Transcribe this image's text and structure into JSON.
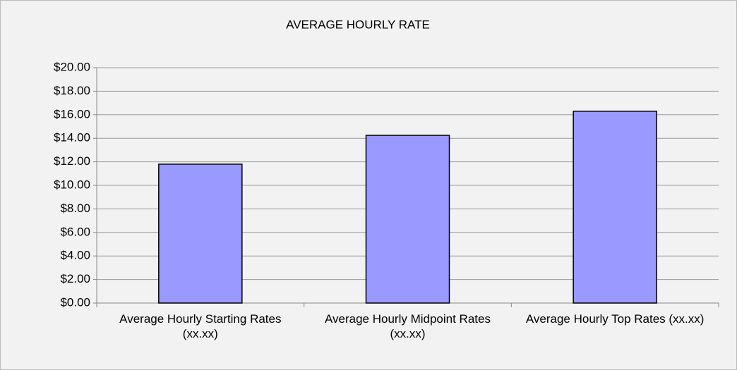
{
  "chart_data": {
    "type": "bar",
    "title": "AVERAGE HOURLY RATE",
    "categories": [
      "Average Hourly Starting Rates (xx.xx)",
      "Average Hourly Midpoint Rates (xx.xx)",
      "Average Hourly Top Rates (xx.xx)"
    ],
    "values": [
      11.8,
      14.25,
      16.3
    ],
    "color": "#9999ff",
    "ylim": [
      0,
      20
    ],
    "yticks": [
      {
        "value": 0,
        "label": "$0.00"
      },
      {
        "value": 2,
        "label": "$2.00"
      },
      {
        "value": 4,
        "label": "$4.00"
      },
      {
        "value": 6,
        "label": "$6.00"
      },
      {
        "value": 8,
        "label": "$8.00"
      },
      {
        "value": 10,
        "label": "$10.00"
      },
      {
        "value": 12,
        "label": "$12.00"
      },
      {
        "value": 14,
        "label": "$14.00"
      },
      {
        "value": 16,
        "label": "$16.00"
      },
      {
        "value": 18,
        "label": "$18.00"
      },
      {
        "value": 20,
        "label": "$20.00"
      }
    ],
    "grid": true
  }
}
